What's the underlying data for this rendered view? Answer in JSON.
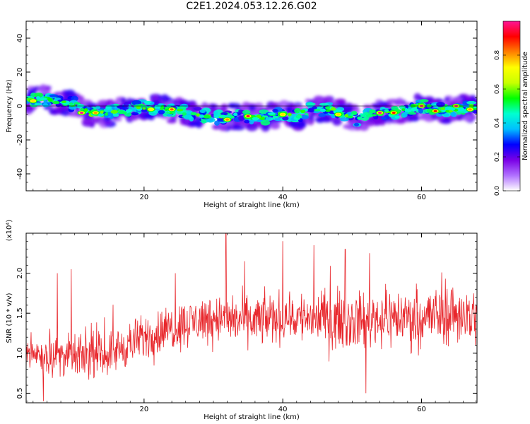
{
  "title": "C2E1.2024.053.12.26.G02",
  "chart_data": [
    {
      "type": "heatmap",
      "xlabel": "Height of straight line (km)",
      "ylabel": "Frequency (Hz)",
      "xlim": [
        3,
        68
      ],
      "ylim": [
        -50,
        50
      ],
      "x_ticks": [
        20,
        40,
        60
      ],
      "y_ticks": [
        40,
        20,
        0,
        -20,
        -40
      ],
      "x_tick_labels": [
        "20",
        "40",
        "60"
      ],
      "y_tick_labels": [
        "40",
        "20",
        "0",
        "-20",
        "-40"
      ],
      "colorbar": {
        "label": "Normalized spectral amplitude",
        "range": [
          0,
          1
        ],
        "ticks": [
          0.0,
          0.2,
          0.4,
          0.6,
          0.8
        ],
        "tick_labels": [
          "0.0",
          "0.2",
          "0.4",
          "0.6",
          "0.8"
        ],
        "colors": [
          "#ffffff",
          "#b070ff",
          "#7a00e6",
          "#0000ff",
          "#00bfff",
          "#00ffd0",
          "#00ff00",
          "#c8ff00",
          "#ffff00",
          "#ff8000",
          "#ff0000",
          "#ff1493"
        ]
      },
      "ridge_center_hz": [
        [
          3,
          3
        ],
        [
          6,
          4
        ],
        [
          8,
          2
        ],
        [
          10,
          1
        ],
        [
          12,
          -4
        ],
        [
          15,
          -4
        ],
        [
          18,
          -2
        ],
        [
          20,
          0
        ],
        [
          23,
          -2
        ],
        [
          25,
          -3
        ],
        [
          28,
          -5
        ],
        [
          31,
          -7
        ],
        [
          34,
          -6
        ],
        [
          37,
          -7
        ],
        [
          40,
          -5
        ],
        [
          42,
          -6
        ],
        [
          44,
          -2
        ],
        [
          47,
          -2
        ],
        [
          49,
          -5
        ],
        [
          51,
          -8
        ],
        [
          53,
          -4
        ],
        [
          56,
          -4
        ],
        [
          58,
          -2
        ],
        [
          60,
          0
        ],
        [
          62,
          -2
        ],
        [
          65,
          -2
        ],
        [
          67,
          -1
        ]
      ],
      "peaks": [
        {
          "x": 4,
          "y": 3,
          "amp": 0.75
        },
        {
          "x": 11,
          "y": -4,
          "amp": 1.0
        },
        {
          "x": 13,
          "y": -4,
          "amp": 0.8
        },
        {
          "x": 21,
          "y": -2,
          "amp": 0.7
        },
        {
          "x": 24,
          "y": -2,
          "amp": 0.85
        },
        {
          "x": 32,
          "y": -8,
          "amp": 0.8
        },
        {
          "x": 35,
          "y": -6,
          "amp": 0.95
        },
        {
          "x": 40,
          "y": -5,
          "amp": 0.75
        },
        {
          "x": 48,
          "y": -5,
          "amp": 0.75
        },
        {
          "x": 54,
          "y": -4,
          "amp": 1.0
        },
        {
          "x": 56,
          "y": -4,
          "amp": 0.9
        },
        {
          "x": 60,
          "y": 0,
          "amp": 1.0
        },
        {
          "x": 62,
          "y": -3,
          "amp": 0.9
        },
        {
          "x": 65,
          "y": 0,
          "amp": 1.0
        },
        {
          "x": 67,
          "y": -2,
          "amp": 0.8
        }
      ]
    },
    {
      "type": "line",
      "xlabel": "Height of straight line (km)",
      "ylabel": "SNR (10 * v/v)",
      "y_scale_label": "(x10⁴)",
      "xlim": [
        3,
        68
      ],
      "ylim": [
        0.38,
        2.5
      ],
      "x_ticks": [
        20,
        40,
        60
      ],
      "y_ticks": [
        0.5,
        1.0,
        1.5,
        2.0
      ],
      "x_tick_labels": [
        "20",
        "40",
        "60"
      ],
      "y_tick_labels": [
        "0.5",
        "1.0",
        "1.5",
        "2.0"
      ],
      "color": "#e8262b",
      "trend": [
        [
          3,
          1.0
        ],
        [
          10,
          0.95
        ],
        [
          15,
          1.0
        ],
        [
          20,
          1.2
        ],
        [
          25,
          1.35
        ],
        [
          30,
          1.45
        ],
        [
          35,
          1.4
        ],
        [
          40,
          1.45
        ],
        [
          45,
          1.45
        ],
        [
          50,
          1.4
        ],
        [
          55,
          1.45
        ],
        [
          60,
          1.45
        ],
        [
          65,
          1.5
        ],
        [
          68,
          1.45
        ]
      ],
      "spikes": [
        [
          7.5,
          2.0
        ],
        [
          9.5,
          2.05
        ],
        [
          24.5,
          2.0
        ],
        [
          31.8,
          2.5
        ],
        [
          34.5,
          2.15
        ],
        [
          40,
          2.4
        ],
        [
          44.5,
          2.35
        ],
        [
          49,
          2.3
        ],
        [
          52.5,
          2.25
        ],
        [
          52,
          0.5
        ],
        [
          5.5,
          0.4
        ]
      ]
    }
  ]
}
